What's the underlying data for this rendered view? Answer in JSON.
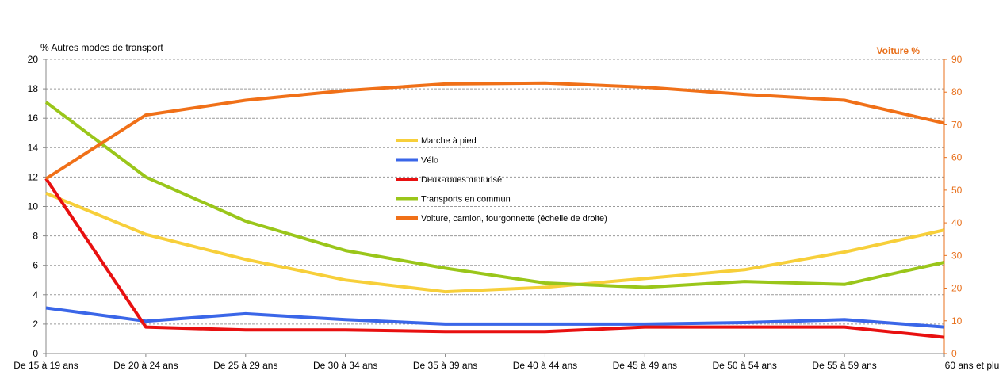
{
  "chart_data": {
    "type": "line",
    "categories": [
      "De 15 à 19 ans",
      "De 20 à 24 ans",
      "De 25 à 29 ans",
      "De 30 à 34 ans",
      "De 35 à 39 ans",
      "De 40 à 44 ans",
      "De 45 à 49 ans",
      "De 50 à 54 ans",
      "De 55 à 59 ans",
      "60 ans et plus"
    ],
    "y_left": {
      "label": "%  Autres modes de transport",
      "range": [
        0,
        20
      ],
      "ticks": [
        0,
        2,
        4,
        6,
        8,
        10,
        12,
        14,
        16,
        18,
        20
      ]
    },
    "y_right": {
      "label": "Voiture  %",
      "range": [
        0,
        90
      ],
      "ticks": [
        0,
        10,
        20,
        30,
        40,
        50,
        60,
        70,
        80,
        90
      ],
      "color": "#e8701c"
    },
    "grid": "horizontal dashed",
    "legend_position": "center",
    "series": [
      {
        "name": "Marche à pied",
        "axis": "left",
        "color": "#f7cf3a",
        "values": [
          10.9,
          8.1,
          6.4,
          5.0,
          4.2,
          4.5,
          5.1,
          5.7,
          6.9,
          8.4
        ]
      },
      {
        "name": "Vélo",
        "axis": "left",
        "color": "#3a66e8",
        "values": [
          3.1,
          2.2,
          2.7,
          2.3,
          2.0,
          2.0,
          2.0,
          2.1,
          2.3,
          1.8
        ]
      },
      {
        "name": "Deux-roues motorisé",
        "axis": "left",
        "color": "#e81010",
        "values": [
          11.9,
          1.8,
          1.6,
          1.6,
          1.5,
          1.5,
          1.8,
          1.8,
          1.8,
          1.1
        ]
      },
      {
        "name": "Transports en commun",
        "axis": "left",
        "color": "#9ac61a",
        "values": [
          17.1,
          12.0,
          9.0,
          7.0,
          5.8,
          4.8,
          4.5,
          4.9,
          4.7,
          6.2
        ]
      },
      {
        "name": "Voiture, camion, fourgonnette (échelle de droite)",
        "axis": "right",
        "color": "#f07018",
        "values": [
          53.5,
          73.0,
          77.5,
          80.5,
          82.5,
          82.8,
          81.5,
          79.3,
          77.5,
          70.5
        ]
      }
    ]
  }
}
